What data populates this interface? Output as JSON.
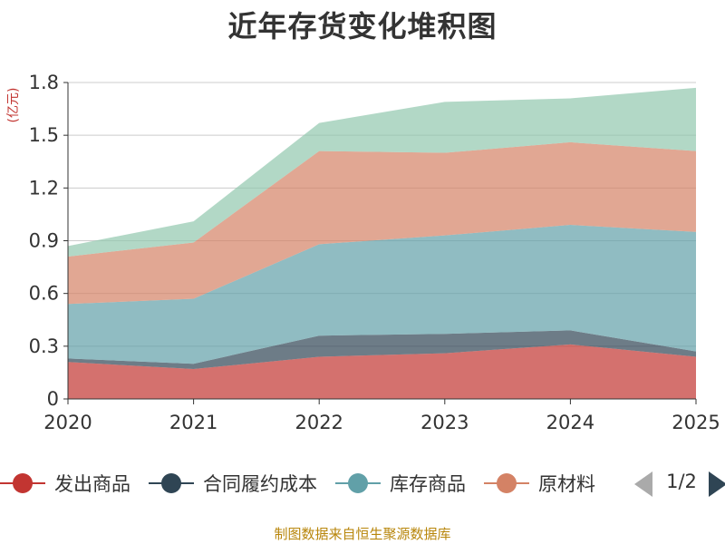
{
  "chart_data": {
    "type": "area",
    "stacked": true,
    "title": "近年存货变化堆积图",
    "ylabel": "(亿元)",
    "ylim": [
      0,
      1.8
    ],
    "yticks": [
      0,
      0.3,
      0.6,
      0.9,
      1.2,
      1.5,
      1.8
    ],
    "ytick_labels": [
      "0",
      "0.3",
      "0.6",
      "0.9",
      "1.2",
      "1.5",
      "1.8"
    ],
    "x": [
      "2020",
      "2021",
      "2022",
      "2023",
      "2024",
      "2025"
    ],
    "grid": true,
    "legend_position": "bottom",
    "series": [
      {
        "name": "发出商品",
        "color": "#c23531",
        "values": [
          0.21,
          0.17,
          0.24,
          0.26,
          0.31,
          0.24
        ]
      },
      {
        "name": "合同履约成本",
        "color": "#2f4554",
        "values": [
          0.02,
          0.03,
          0.12,
          0.11,
          0.08,
          0.03
        ]
      },
      {
        "name": "库存商品",
        "color": "#61a0a8",
        "values": [
          0.31,
          0.37,
          0.52,
          0.56,
          0.6,
          0.68
        ]
      },
      {
        "name": "原材料",
        "color": "#d48265",
        "values": [
          0.27,
          0.32,
          0.53,
          0.47,
          0.47,
          0.46
        ]
      },
      {
        "name": "",
        "color": "#91c7ae",
        "values": [
          0.06,
          0.12,
          0.16,
          0.29,
          0.25,
          0.36
        ]
      }
    ]
  },
  "legend": {
    "pager": "1/2"
  },
  "source_note": "制图数据来自恒生聚源数据库"
}
